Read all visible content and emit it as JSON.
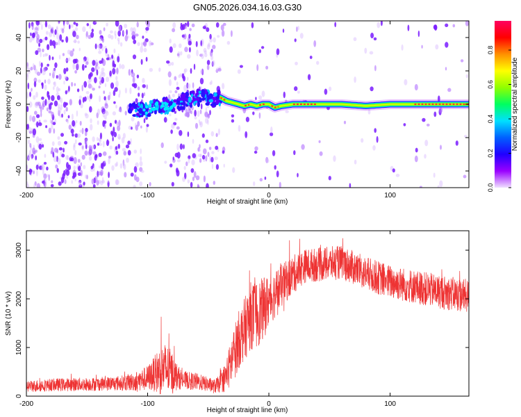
{
  "title": "GN05.2026.034.16.03.G30",
  "chart_data": [
    {
      "type": "heatmap",
      "name": "spectrogram",
      "xlabel": "Height of straight line (km)",
      "ylabel": "Frequency (Hz)",
      "xlim": [
        -200,
        165
      ],
      "ylim": [
        -50,
        50
      ],
      "xticks": [
        -200,
        -100,
        0,
        100
      ],
      "yticks": [
        -40,
        -20,
        0,
        20,
        40
      ],
      "colorbar": {
        "label": "Normalized spectral amplitude",
        "range": [
          0,
          0.97
        ],
        "ticks": [
          0.0,
          0.2,
          0.4,
          0.6,
          0.8
        ],
        "colors": [
          "#f0e0ff",
          "#9a00ff",
          "#2000ff",
          "#0060ff",
          "#00e0ff",
          "#00ff60",
          "#90ff00",
          "#ffff00",
          "#ff9000",
          "#ff0000",
          "#ff0060"
        ]
      },
      "signal_track": {
        "x": [
          -110,
          -100,
          -90,
          -80,
          -70,
          -60,
          -50,
          -45,
          -40,
          -35,
          -30,
          -25,
          -20,
          -15,
          -10,
          -5,
          0,
          5,
          10,
          20,
          40,
          60,
          80,
          100,
          120,
          140,
          165
        ],
        "y": [
          -3,
          -3,
          -1,
          -1,
          2,
          4,
          4,
          3,
          4,
          2,
          1,
          0,
          -1,
          0,
          -1,
          0,
          0,
          -2,
          -1,
          0,
          0,
          0,
          -1,
          0,
          0,
          0,
          0
        ]
      }
    },
    {
      "type": "line",
      "name": "snr",
      "xlabel": "Height of straight line (km)",
      "ylabel": "SNR (10 * v/v)",
      "xlim": [
        -200,
        165
      ],
      "ylim": [
        0,
        3400
      ],
      "xticks": [
        -200,
        -100,
        0,
        100
      ],
      "yticks": [
        0,
        1000,
        2000,
        3000
      ],
      "color": "#ee3333",
      "trend": {
        "x": [
          -200,
          -180,
          -160,
          -140,
          -120,
          -110,
          -100,
          -95,
          -90,
          -85,
          -80,
          -75,
          -70,
          -60,
          -50,
          -45,
          -40,
          -35,
          -30,
          -25,
          -20,
          -15,
          -10,
          -5,
          0,
          10,
          20,
          30,
          40,
          60,
          80,
          100,
          120,
          140,
          165
        ],
        "mean": [
          200,
          230,
          240,
          250,
          270,
          300,
          370,
          450,
          520,
          560,
          480,
          380,
          330,
          300,
          240,
          200,
          260,
          420,
          780,
          1150,
          1380,
          1650,
          1680,
          1780,
          1960,
          2250,
          2500,
          2680,
          2700,
          2750,
          2520,
          2350,
          2250,
          2150,
          2050
        ],
        "spread": [
          120,
          130,
          140,
          140,
          160,
          200,
          260,
          350,
          500,
          550,
          450,
          250,
          180,
          180,
          150,
          150,
          180,
          350,
          550,
          600,
          650,
          700,
          700,
          650,
          550,
          450,
          400,
          350,
          350,
          350,
          350,
          350,
          350,
          350,
          350
        ]
      }
    }
  ]
}
